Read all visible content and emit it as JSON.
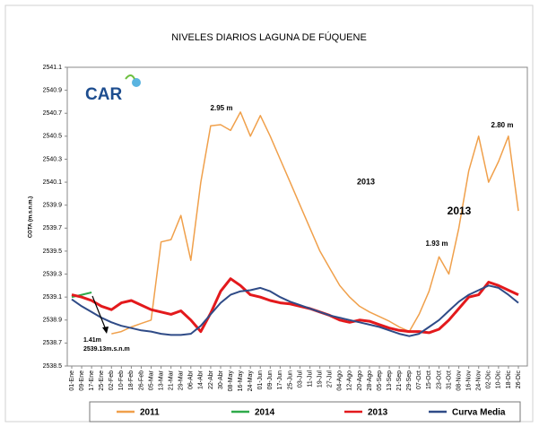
{
  "chart_data": {
    "type": "line",
    "title": "NIVELES DIARIOS LAGUNA DE FÚQUENE",
    "ylabel": "COTA (m.s.n.m.)",
    "logo": "CAR",
    "categories": [
      "01-Ene",
      "09-Ene",
      "17-Ene",
      "25-Ene",
      "02-Feb",
      "10-Feb",
      "18-Feb",
      "26-Feb",
      "05-Mar",
      "13-Mar",
      "21-Mar",
      "29-Mar",
      "06-Abr",
      "14-Abr",
      "22-Abr",
      "30-Abr",
      "08-May",
      "16-May",
      "24-May",
      "01-Jun",
      "09-Jun",
      "17-Jun",
      "25-Jun",
      "03-Jul",
      "11-Jul",
      "19-Jul",
      "27-Jul",
      "04-Ago",
      "12-Ago",
      "20-Ago",
      "28-Ago",
      "05-Sep",
      "13-Sep",
      "21-Sep",
      "29-Sep",
      "07-Oct",
      "15-Oct",
      "23-Oct",
      "31-Oct",
      "08-Nov",
      "16-Nov",
      "24-Nov",
      "02-Dic",
      "10-Dic",
      "18-Dic",
      "26-Dic"
    ],
    "series": [
      {
        "name": "2011",
        "color": "#f0a04b",
        "values": [
          null,
          null,
          null,
          null,
          2538.78,
          2538.8,
          2538.84,
          2538.87,
          2538.9,
          2539.58,
          2539.6,
          2539.81,
          2539.42,
          2540.1,
          2540.59,
          2540.6,
          2540.55,
          2540.71,
          2540.5,
          2540.68,
          2540.5,
          2540.3,
          2540.1,
          2539.9,
          2539.7,
          2539.5,
          2539.35,
          2539.2,
          2539.1,
          2539.02,
          2538.97,
          2538.93,
          2538.89,
          2538.84,
          2538.8,
          2538.95,
          2539.15,
          2539.45,
          2539.3,
          2539.7,
          2540.2,
          2540.5,
          2540.1,
          2540.28,
          2540.5,
          2539.85
        ]
      },
      {
        "name": "2014",
        "color": "#2eaa4a",
        "values": [
          2539.1,
          2539.12,
          2539.14,
          null,
          null,
          null,
          null,
          null,
          null,
          null,
          null,
          null,
          null,
          null,
          null,
          null,
          null,
          null,
          null,
          null,
          null,
          null,
          null,
          null,
          null,
          null,
          null,
          null,
          null,
          null,
          null,
          null,
          null,
          null,
          null,
          null,
          null,
          null,
          null,
          null,
          null,
          null,
          null,
          null,
          null,
          null
        ]
      },
      {
        "name": "2013",
        "color": "#e3191c",
        "values": [
          2539.12,
          2539.1,
          2539.07,
          2539.02,
          2538.99,
          2539.05,
          2539.07,
          2539.03,
          2538.99,
          2538.97,
          2538.95,
          2538.98,
          2538.9,
          2538.8,
          2538.96,
          2539.15,
          2539.26,
          2539.2,
          2539.12,
          2539.1,
          2539.07,
          2539.05,
          2539.04,
          2539.02,
          2539.0,
          2538.97,
          2538.94,
          2538.9,
          2538.88,
          2538.9,
          2538.89,
          2538.86,
          2538.83,
          2538.81,
          2538.8,
          2538.8,
          2538.79,
          2538.82,
          2538.9,
          2539.0,
          2539.1,
          2539.12,
          2539.23,
          2539.2,
          2539.16,
          2539.12
        ]
      },
      {
        "name": "Curva Media",
        "color": "#2f4b87",
        "values": [
          2539.08,
          2539.02,
          2538.97,
          2538.92,
          2538.88,
          2538.85,
          2538.83,
          2538.81,
          2538.8,
          2538.78,
          2538.77,
          2538.77,
          2538.78,
          2538.85,
          2538.95,
          2539.05,
          2539.12,
          2539.15,
          2539.16,
          2539.18,
          2539.15,
          2539.1,
          2539.06,
          2539.03,
          2539.0,
          2538.97,
          2538.94,
          2538.92,
          2538.9,
          2538.88,
          2538.86,
          2538.84,
          2538.81,
          2538.78,
          2538.76,
          2538.78,
          2538.84,
          2538.9,
          2538.98,
          2539.06,
          2539.12,
          2539.16,
          2539.2,
          2539.18,
          2539.12,
          2539.05
        ]
      }
    ],
    "ylim": [
      2538.5,
      2541.1
    ],
    "yticks": [
      2538.5,
      2538.7,
      2538.9,
      2539.1,
      2539.3,
      2539.5,
      2539.7,
      2539.9,
      2540.1,
      2540.3,
      2540.5,
      2540.7,
      2540.9,
      2541.1
    ],
    "annotations": [
      "2.95 m",
      "2.80 m",
      "1.93 m",
      "2013",
      "2013",
      "1.41m",
      "2539.13m.s.n.m"
    ],
    "legend": "bottom"
  }
}
